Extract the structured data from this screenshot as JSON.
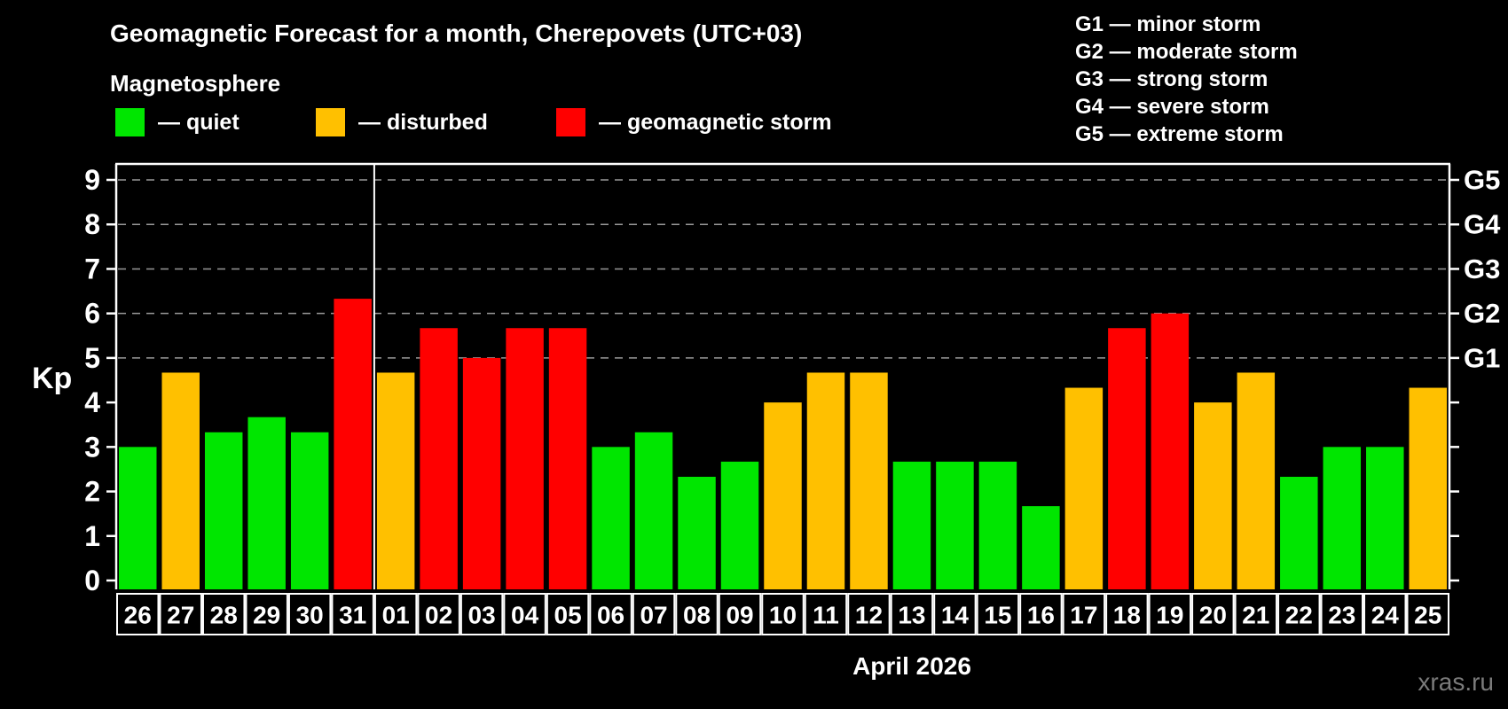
{
  "header": {
    "title": "Geomagnetic Forecast for a month, Cherepovets (UTC+03)",
    "subtitle": "Magnetosphere"
  },
  "legend": {
    "items": [
      {
        "status": "quiet",
        "label": "— quiet",
        "x": 130
      },
      {
        "status": "disturbed",
        "label": "— disturbed",
        "x": 356
      },
      {
        "status": "storm",
        "label": "— geomagnetic storm",
        "x": 627
      }
    ]
  },
  "g_legend": {
    "items": [
      "G1 — minor storm",
      "G2 — moderate storm",
      "G3 — strong storm",
      "G4 — severe storm",
      "G5 — extreme storm"
    ]
  },
  "colors": {
    "quiet": "#00e600",
    "disturbed": "#ffc000",
    "storm": "#ff0000",
    "axis": "#ffffff",
    "grid": "#999999",
    "watermark": "#7b7b7b",
    "background": "#000000"
  },
  "footer": {
    "watermark": "xras.ru"
  },
  "chart_data": {
    "type": "bar",
    "title": "Geomagnetic Forecast for a month, Cherepovets (UTC+03)",
    "ylabel": "Kp",
    "ylim": [
      0,
      9
    ],
    "left_ticks": [
      0,
      1,
      2,
      3,
      4,
      5,
      6,
      7,
      8,
      9
    ],
    "grid_values": [
      5,
      6,
      7,
      8,
      9
    ],
    "grid_style": "dashed",
    "right_axis": [
      {
        "label": "G1",
        "value": 5
      },
      {
        "label": "G2",
        "value": 6
      },
      {
        "label": "G3",
        "value": 7
      },
      {
        "label": "G4",
        "value": 8
      },
      {
        "label": "G5",
        "value": 9
      }
    ],
    "month_label": "April 2026",
    "month_separator_after_index": 5,
    "categories": [
      "26",
      "27",
      "28",
      "29",
      "30",
      "31",
      "01",
      "02",
      "03",
      "04",
      "05",
      "06",
      "07",
      "08",
      "09",
      "10",
      "11",
      "12",
      "13",
      "14",
      "15",
      "16",
      "17",
      "18",
      "19",
      "20",
      "21",
      "22",
      "23",
      "24",
      "25"
    ],
    "values": [
      3.0,
      4.67,
      3.33,
      3.67,
      3.33,
      6.33,
      4.67,
      5.67,
      5.0,
      5.67,
      5.67,
      3.0,
      3.33,
      2.33,
      2.67,
      4.0,
      4.67,
      4.67,
      2.67,
      2.67,
      2.67,
      1.67,
      4.33,
      5.67,
      6.0,
      4.0,
      4.67,
      2.33,
      3.0,
      3.0,
      4.33
    ],
    "statuses": [
      "quiet",
      "disturbed",
      "quiet",
      "quiet",
      "quiet",
      "storm",
      "disturbed",
      "storm",
      "storm",
      "storm",
      "storm",
      "quiet",
      "quiet",
      "quiet",
      "quiet",
      "disturbed",
      "disturbed",
      "disturbed",
      "quiet",
      "quiet",
      "quiet",
      "quiet",
      "disturbed",
      "storm",
      "storm",
      "disturbed",
      "disturbed",
      "quiet",
      "quiet",
      "quiet",
      "disturbed"
    ]
  }
}
